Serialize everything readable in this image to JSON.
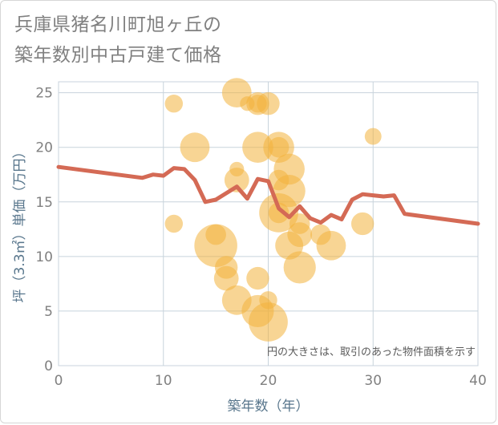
{
  "chart_data": {
    "type": "scatter",
    "title_lines": [
      "兵庫県猪名川町旭ヶ丘の",
      "築年数別中古戸建て価格"
    ],
    "xlabel": "築年数（年）",
    "ylabel": "坪（3.3㎡）単価（万円）",
    "annotation": "円の大きさは、取引のあった物件面積を示す",
    "xlim": [
      0,
      40
    ],
    "ylim": [
      0,
      26
    ],
    "x_ticks": [
      0,
      10,
      20,
      30,
      40
    ],
    "y_ticks": [
      0,
      5,
      10,
      15,
      20,
      25
    ],
    "colors": {
      "bubble": "#f2b33d",
      "line": "#d46a55",
      "grid": "#c8d3dc",
      "tick": "#808080"
    },
    "bubbles": [
      {
        "x": 11,
        "y": 24,
        "size": 1
      },
      {
        "x": 11,
        "y": 13,
        "size": 1
      },
      {
        "x": 13,
        "y": 20,
        "size": 4
      },
      {
        "x": 15,
        "y": 11,
        "size": 10
      },
      {
        "x": 15,
        "y": 12,
        "size": 1.5
      },
      {
        "x": 16,
        "y": 9,
        "size": 2
      },
      {
        "x": 16,
        "y": 8,
        "size": 2.5
      },
      {
        "x": 17,
        "y": 25,
        "size": 4
      },
      {
        "x": 17,
        "y": 18,
        "size": 0.5
      },
      {
        "x": 17,
        "y": 17,
        "size": 2.5
      },
      {
        "x": 17,
        "y": 6,
        "size": 4
      },
      {
        "x": 18,
        "y": 24,
        "size": 0.5
      },
      {
        "x": 19,
        "y": 24,
        "size": 2
      },
      {
        "x": 19,
        "y": 24,
        "size": 1
      },
      {
        "x": 19,
        "y": 20,
        "size": 4.5
      },
      {
        "x": 19,
        "y": 8,
        "size": 2
      },
      {
        "x": 19,
        "y": 5,
        "size": 5
      },
      {
        "x": 20,
        "y": 24,
        "size": 2
      },
      {
        "x": 20,
        "y": 6,
        "size": 1
      },
      {
        "x": 20,
        "y": 4,
        "size": 8
      },
      {
        "x": 21,
        "y": 20,
        "size": 4.5
      },
      {
        "x": 21,
        "y": 20,
        "size": 1.5
      },
      {
        "x": 21,
        "y": 17,
        "size": 1.5
      },
      {
        "x": 21,
        "y": 14,
        "size": 8
      },
      {
        "x": 21,
        "y": 14,
        "size": 1.5
      },
      {
        "x": 22,
        "y": 18,
        "size": 4.5
      },
      {
        "x": 22,
        "y": 16,
        "size": 5
      },
      {
        "x": 22,
        "y": 11,
        "size": 3.5
      },
      {
        "x": 23,
        "y": 13,
        "size": 1.5
      },
      {
        "x": 23,
        "y": 12,
        "size": 2.5
      },
      {
        "x": 23,
        "y": 9,
        "size": 5
      },
      {
        "x": 25,
        "y": 12,
        "size": 1.5
      },
      {
        "x": 26,
        "y": 11,
        "size": 4
      },
      {
        "x": 29,
        "y": 13,
        "size": 2
      },
      {
        "x": 30,
        "y": 21,
        "size": 0.8
      }
    ],
    "trend": {
      "x": [
        0,
        8,
        9,
        10,
        11,
        12,
        13,
        14,
        15,
        16,
        17,
        18,
        19,
        20,
        21,
        22,
        23,
        24,
        25,
        26,
        27,
        28,
        29,
        30,
        31,
        32,
        33,
        40
      ],
      "y": [
        18.2,
        17.2,
        17.5,
        17.4,
        18.1,
        18.0,
        17.0,
        15.0,
        15.2,
        15.8,
        16.4,
        15.3,
        17.1,
        16.9,
        14.4,
        13.6,
        14.6,
        13.5,
        13.1,
        13.8,
        13.4,
        15.2,
        15.7,
        15.6,
        15.5,
        15.6,
        13.9,
        13.0
      ]
    }
  }
}
